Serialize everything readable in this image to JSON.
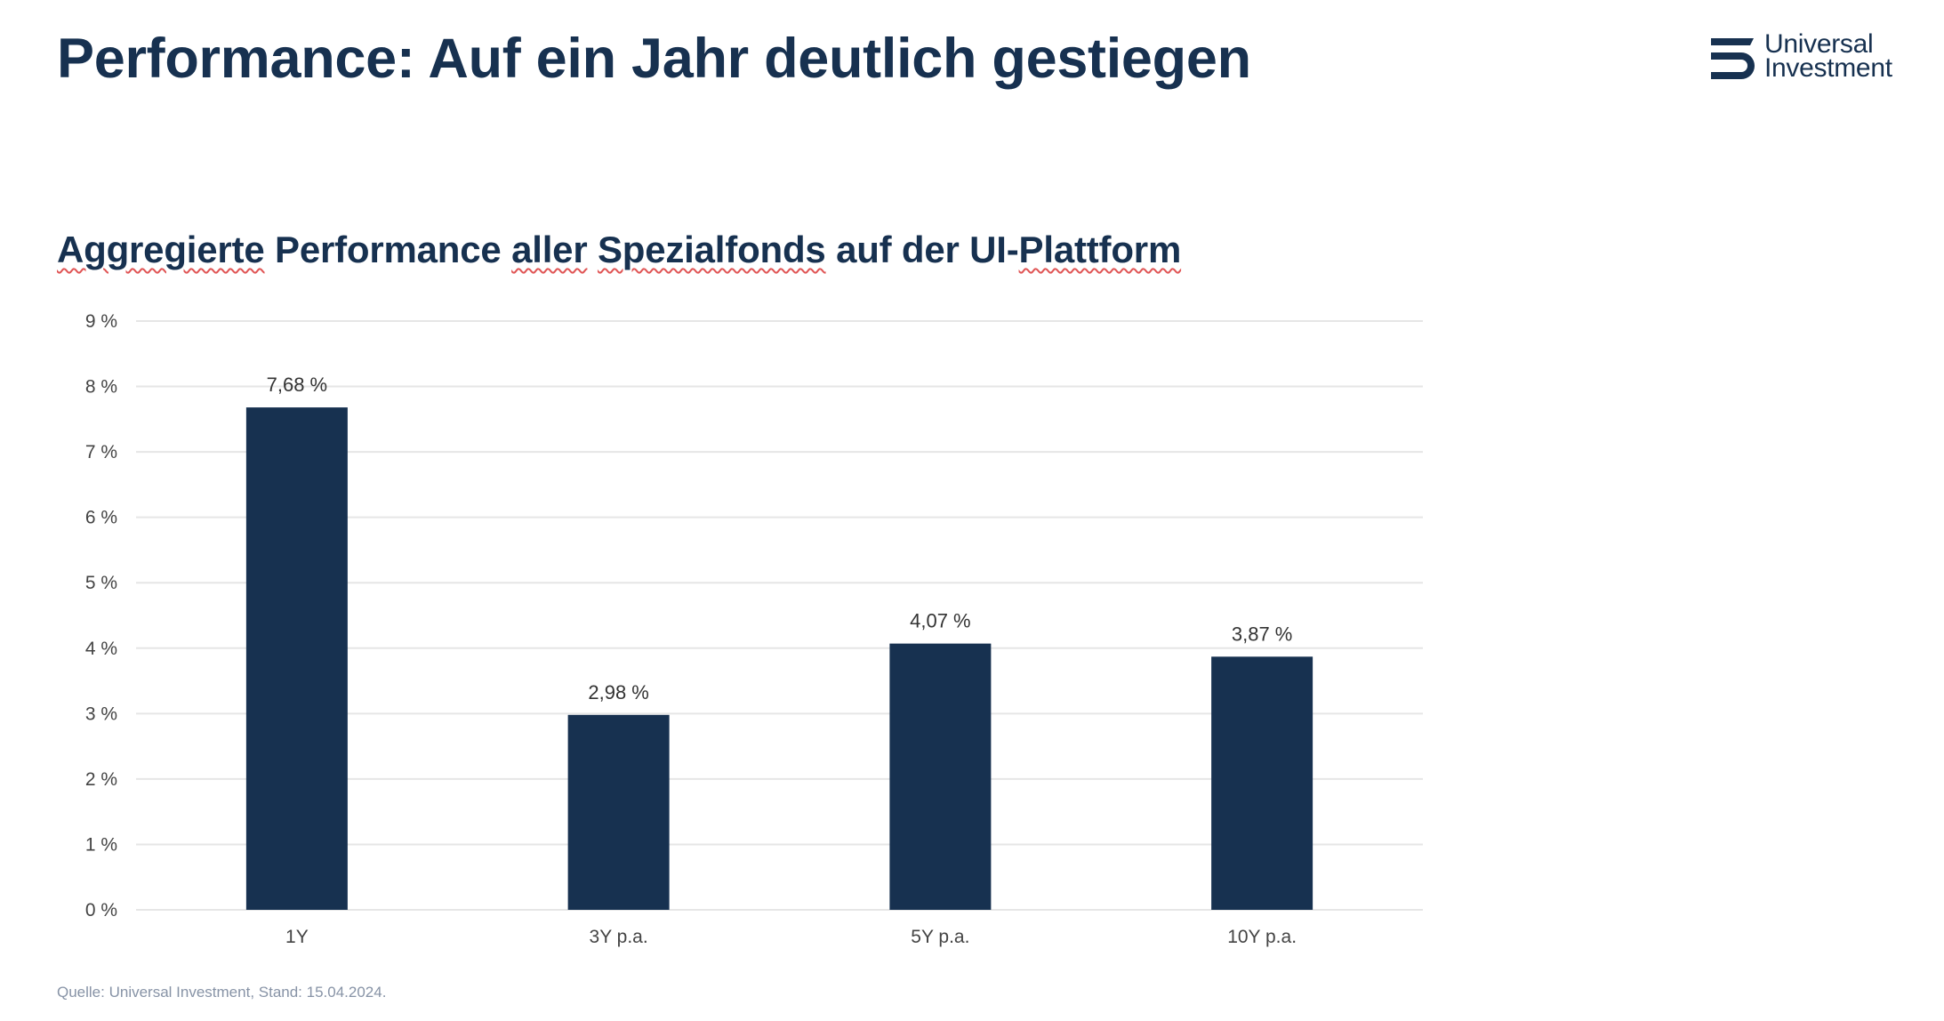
{
  "header": {
    "title": "Performance: Auf ein Jahr deutlich gestiegen",
    "logo": {
      "line1": "Universal",
      "line2": "Investment",
      "icon": "universal-investment-logo-mark"
    }
  },
  "subtitle_words": [
    {
      "text": "Aggregierte",
      "spellcheck": true
    },
    {
      "text": " Performance ",
      "spellcheck": false
    },
    {
      "text": "aller",
      "spellcheck": true
    },
    {
      "text": " ",
      "spellcheck": false
    },
    {
      "text": "Spezialfonds",
      "spellcheck": true
    },
    {
      "text": " auf der UI-",
      "spellcheck": false
    },
    {
      "text": "Plattform",
      "spellcheck": true
    }
  ],
  "colors": {
    "bar": "#173150",
    "title": "#173150",
    "grid": "#e6e6e6",
    "tick_text": "#444444",
    "footer": "#8793a6",
    "spellcheck": "#e05555"
  },
  "chart_data": {
    "type": "bar",
    "title": "Aggregierte Performance aller Spezialfonds auf der UI-Plattform",
    "xlabel": "",
    "ylabel": "",
    "categories": [
      "1Y",
      "3Y p.a.",
      "5Y p.a.",
      "10Y p.a."
    ],
    "values": [
      7.68,
      2.98,
      4.07,
      3.87
    ],
    "data_labels": [
      "7,68 %",
      "2,98 %",
      "4,07 %",
      "3,87 %"
    ],
    "ylim": [
      0,
      9
    ],
    "yticks": [
      0,
      1,
      2,
      3,
      4,
      5,
      6,
      7,
      8,
      9
    ],
    "ytick_labels": [
      "0 %",
      "1 %",
      "2 %",
      "3 %",
      "4 %",
      "5 %",
      "6 %",
      "7 %",
      "8 %",
      "9 %"
    ],
    "grid": true,
    "legend": "none"
  },
  "footer": {
    "source": "Quelle: Universal Investment, Stand: 15.04.2024."
  }
}
